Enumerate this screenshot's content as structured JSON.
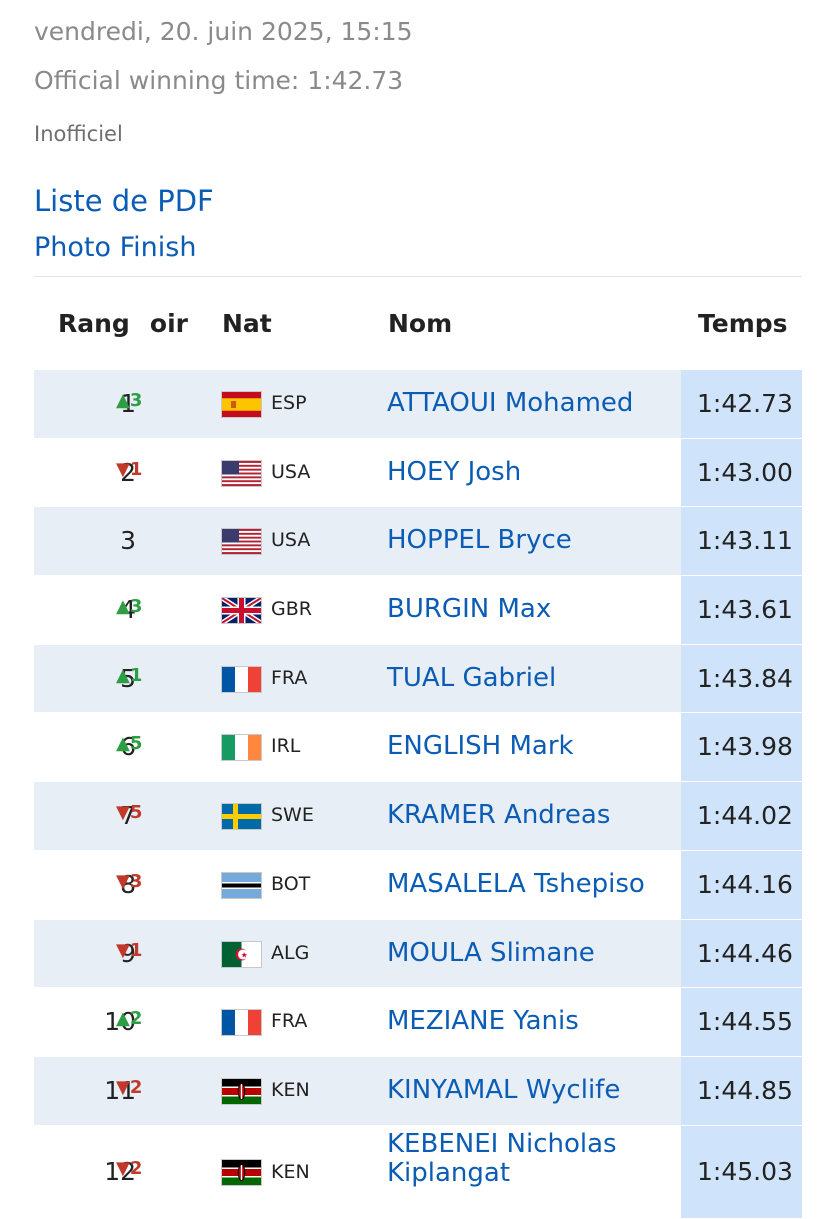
{
  "header": {
    "date": "vendredi, 20. juin 2025, 15:15",
    "official_time": "Official winning time: 1:42.73",
    "status": "Inofficiel",
    "pdf_link": "Liste de PDF",
    "photo_link": "Photo Finish"
  },
  "table": {
    "columns": {
      "rank": "Rang",
      "lane": "Couloir",
      "nat": "Nat",
      "name": "Nom",
      "time": "Temps"
    },
    "rows": [
      {
        "rank": "1",
        "move": "▲3",
        "dir": "up",
        "nat": "ESP",
        "flag": "esp-flag-icon",
        "name": "ATTAOUI Mohamed",
        "time": "1:42.73"
      },
      {
        "rank": "2",
        "move": "▼1",
        "dir": "down",
        "nat": "USA",
        "flag": "usa-flag-icon",
        "name": "HOEY Josh",
        "time": "1:43.00"
      },
      {
        "rank": "3",
        "move": "",
        "dir": "",
        "nat": "USA",
        "flag": "usa-flag-icon",
        "name": "HOPPEL Bryce",
        "time": "1:43.11"
      },
      {
        "rank": "4",
        "move": "▲3",
        "dir": "up",
        "nat": "GBR",
        "flag": "gbr-flag-icon",
        "name": "BURGIN Max",
        "time": "1:43.61"
      },
      {
        "rank": "5",
        "move": "▲1",
        "dir": "up",
        "nat": "FRA",
        "flag": "fra-flag-icon",
        "name": "TUAL Gabriel",
        "time": "1:43.84"
      },
      {
        "rank": "6",
        "move": "▲5",
        "dir": "up",
        "nat": "IRL",
        "flag": "irl-flag-icon",
        "name": "ENGLISH Mark",
        "time": "1:43.98"
      },
      {
        "rank": "7",
        "move": "▼5",
        "dir": "down",
        "nat": "SWE",
        "flag": "swe-flag-icon",
        "name": "KRAMER Andreas",
        "time": "1:44.02"
      },
      {
        "rank": "8",
        "move": "▼3",
        "dir": "down",
        "nat": "BOT",
        "flag": "bot-flag-icon",
        "name": "MASALELA Tshepiso",
        "time": "1:44.16"
      },
      {
        "rank": "9",
        "move": "▼1",
        "dir": "down",
        "nat": "ALG",
        "flag": "alg-flag-icon",
        "name": "MOULA Slimane",
        "time": "1:44.46"
      },
      {
        "rank": "10",
        "move": "▲2",
        "dir": "up",
        "nat": "FRA",
        "flag": "fra-flag-icon",
        "name": "MEZIANE Yanis",
        "time": "1:44.55"
      },
      {
        "rank": "11",
        "move": "▼2",
        "dir": "down",
        "nat": "KEN",
        "flag": "ken-flag-icon",
        "name": "KINYAMAL Wyclife",
        "time": "1:44.85"
      },
      {
        "rank": "12",
        "move": "▼2",
        "dir": "down",
        "nat": "KEN",
        "flag": "ken-flag-icon",
        "name": "KEBENEI Nicholas Kiplangat",
        "name_line1": "KEBENEI Nicholas",
        "name_line2": "Kiplangat",
        "time": "1:45.03"
      }
    ]
  }
}
